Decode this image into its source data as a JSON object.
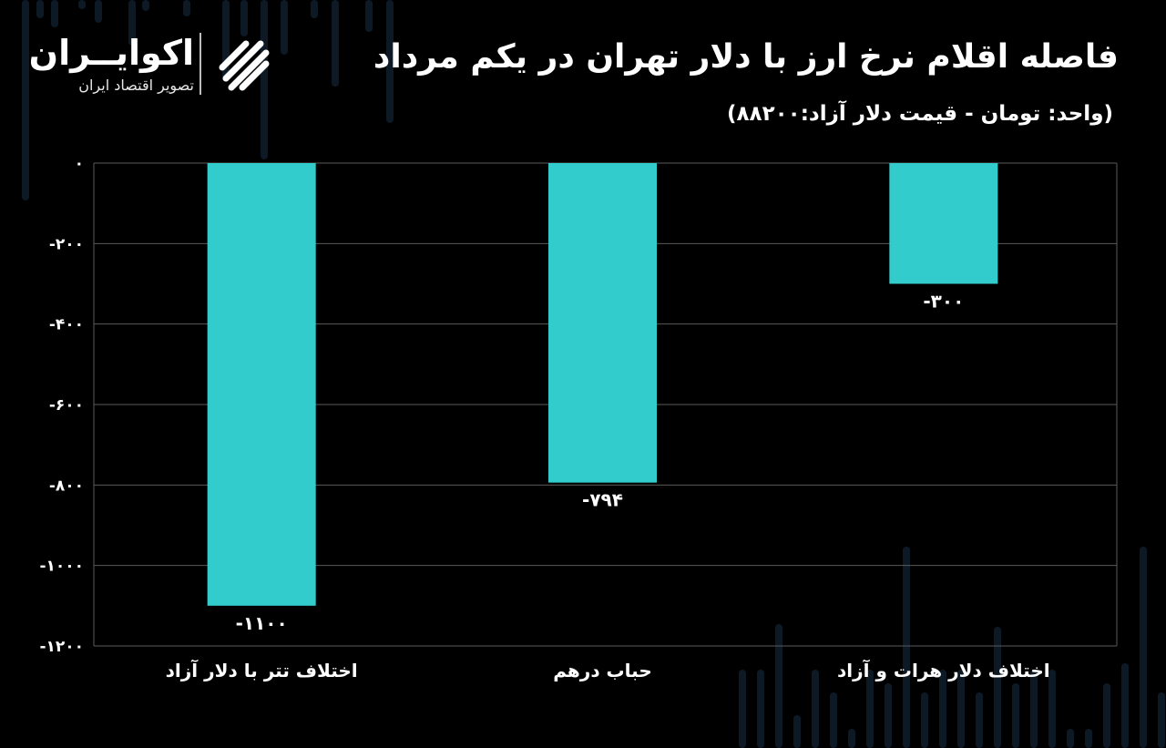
{
  "header": {
    "title": "فاصله اقلام نرخ ارز با دلار تهران در یکم مرداد",
    "subtitle": "(واحد: تومان - قیمت دلار آزاد:۸۸۲۰۰)"
  },
  "brand": {
    "name": "اکوایــران",
    "tagline": "تصویر اقتصاد ایران",
    "icon": "ecoiran-logo-icon"
  },
  "colors": {
    "background": "#000000",
    "bar": "#33cccc",
    "grid": "#5a5a5a",
    "text": "#ffffff",
    "decor": "#0d1a26"
  },
  "chart_data": {
    "type": "bar",
    "title": "فاصله اقلام نرخ ارز با دلار تهران در یکم مرداد",
    "subtitle": "(واحد: تومان - قیمت دلار آزاد:۸۸۲۰۰)",
    "categories": [
      "اختلاف تتر با دلار آزاد",
      "حباب درهم",
      "اختلاف دلار هرات و آزاد"
    ],
    "values": [
      -1100,
      -794,
      -300
    ],
    "value_labels": [
      "-۱۱۰۰",
      "-۷۹۴",
      "-۳۰۰"
    ],
    "ylim": [
      -1200,
      0
    ],
    "yticks": [
      0,
      -200,
      -400,
      -600,
      -800,
      -1000,
      -1200
    ],
    "ytick_labels": [
      "۰",
      "-۲۰۰",
      "-۴۰۰",
      "-۶۰۰",
      "-۸۰۰",
      "-۱۰۰۰",
      "-۱۲۰۰"
    ],
    "grid": true,
    "legend": "none"
  }
}
